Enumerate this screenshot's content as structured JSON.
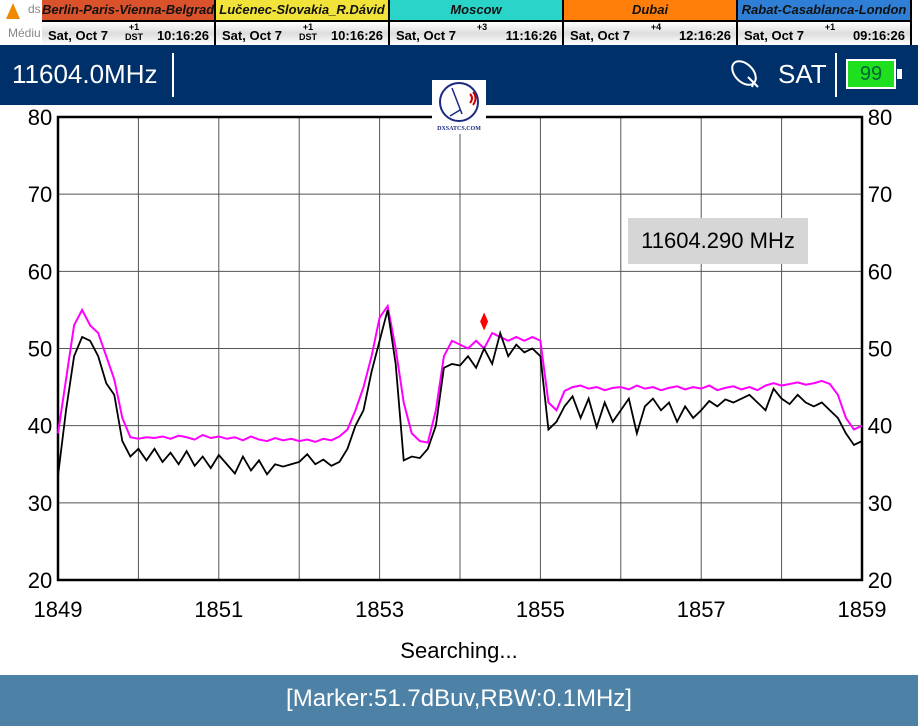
{
  "taskbar": {
    "app_icon": "vlc-cone-icon",
    "title_fragment": "ds",
    "subtitle_fragment": "Médiu"
  },
  "clocks": [
    {
      "city": "Berlin-Paris-Vienna-Belgrade",
      "date": "Sat, Oct 7",
      "offset": "+1",
      "dst": "DST",
      "time": "10:16:26",
      "color": "#d9522b"
    },
    {
      "city": "Lučenec-Slovakia_R.Dávid",
      "date": "Sat, Oct 7",
      "offset": "+1",
      "dst": "DST",
      "time": "10:16:26",
      "color": "#f1e33a"
    },
    {
      "city": "Moscow",
      "date": "Sat, Oct 7",
      "offset": "+3",
      "dst": "",
      "time": "11:16:26",
      "color": "#2ad4c8"
    },
    {
      "city": "Dubai",
      "date": "Sat, Oct 7",
      "offset": "+4",
      "dst": "",
      "time": "12:16:26",
      "color": "#ff7f0a"
    },
    {
      "city": "Rabat-Casablanca-London",
      "date": "Sat, Oct 7",
      "offset": "+1",
      "dst": "",
      "time": "09:16:26",
      "color": "#2f7fd6"
    }
  ],
  "header": {
    "frequency": "11604.0MHz",
    "mode": "SAT",
    "battery": "99",
    "icon": "satellite-dish-icon"
  },
  "logo": {
    "text": "DXSATCS.COM"
  },
  "marker_box": "11604.290 MHz",
  "status": "Searching...",
  "footer": "[Marker:51.7dBuv,RBW:0.1MHz]",
  "chart_data": {
    "type": "line",
    "x_start": 1849,
    "x_step": 0.1,
    "xlim": [
      1849,
      1859
    ],
    "ylim": [
      20,
      80
    ],
    "xticks": [
      "1849",
      "1851",
      "1853",
      "1855",
      "1857",
      "1859"
    ],
    "yticks": [
      "80",
      "70",
      "60",
      "50",
      "40",
      "30",
      "20"
    ],
    "grid": true,
    "series": [
      {
        "color": "#ff00ff",
        "values": [
          39,
          46,
          53,
          55,
          53,
          52,
          49,
          46,
          41,
          38.5,
          38.3,
          38.5,
          38.4,
          38.6,
          38.3,
          38.7,
          38.5,
          38.2,
          38.8,
          38.4,
          38.6,
          38.3,
          38.5,
          38.1,
          38.6,
          38.2,
          38.0,
          38.4,
          38.1,
          38.3,
          38.0,
          38.2,
          37.9,
          38.3,
          38.1,
          38.6,
          39.5,
          42,
          45,
          49,
          54,
          55.5,
          50,
          43,
          39,
          38,
          37.8,
          42,
          49,
          51,
          50.5,
          50,
          51,
          50,
          52,
          51.5,
          51,
          51.5,
          51,
          51.5,
          51,
          43,
          42,
          44.5,
          45,
          45.2,
          44.8,
          45,
          44.6,
          44.9,
          45,
          44.7,
          45.2,
          44.8,
          45,
          44.6,
          44.9,
          45.1,
          44.7,
          45,
          44.8,
          45.2,
          44.6,
          44.9,
          45.1,
          44.7,
          45,
          44.6,
          45.2,
          45.5,
          45.2,
          45.4,
          45.6,
          45.3,
          45.5,
          45.8,
          45.4,
          44,
          41,
          39.5,
          40
        ]
      },
      {
        "color": "#000000",
        "values": [
          33.5,
          42,
          49,
          51.5,
          51,
          49,
          45.5,
          44,
          38,
          36,
          37,
          35.5,
          37,
          35.3,
          36.5,
          35,
          36.7,
          34.8,
          36,
          34.5,
          36.2,
          35,
          33.8,
          36,
          34.2,
          35.5,
          33.7,
          35,
          34.7,
          35,
          35.3,
          36.3,
          35,
          35.6,
          34.8,
          35.3,
          37,
          40,
          42,
          47,
          51,
          55,
          48,
          35.5,
          36,
          35.8,
          37,
          40,
          47.5,
          48,
          47.8,
          49,
          47.5,
          50,
          48,
          52,
          49,
          50.5,
          49.5,
          50,
          49,
          39.5,
          40.5,
          42.5,
          43.8,
          41,
          43.5,
          39.8,
          43,
          40.5,
          42,
          43.5,
          39,
          42.5,
          43.5,
          42,
          43,
          40.5,
          42.5,
          41,
          42,
          43.2,
          42.5,
          43.4,
          43,
          43.5,
          44,
          43,
          42,
          44.8,
          43.5,
          42.8,
          44,
          43,
          42.5,
          43,
          42,
          41,
          39,
          37.5,
          38
        ]
      }
    ],
    "marker": {
      "x": 1854.3,
      "y": 53.5,
      "color": "#ff0000"
    }
  }
}
